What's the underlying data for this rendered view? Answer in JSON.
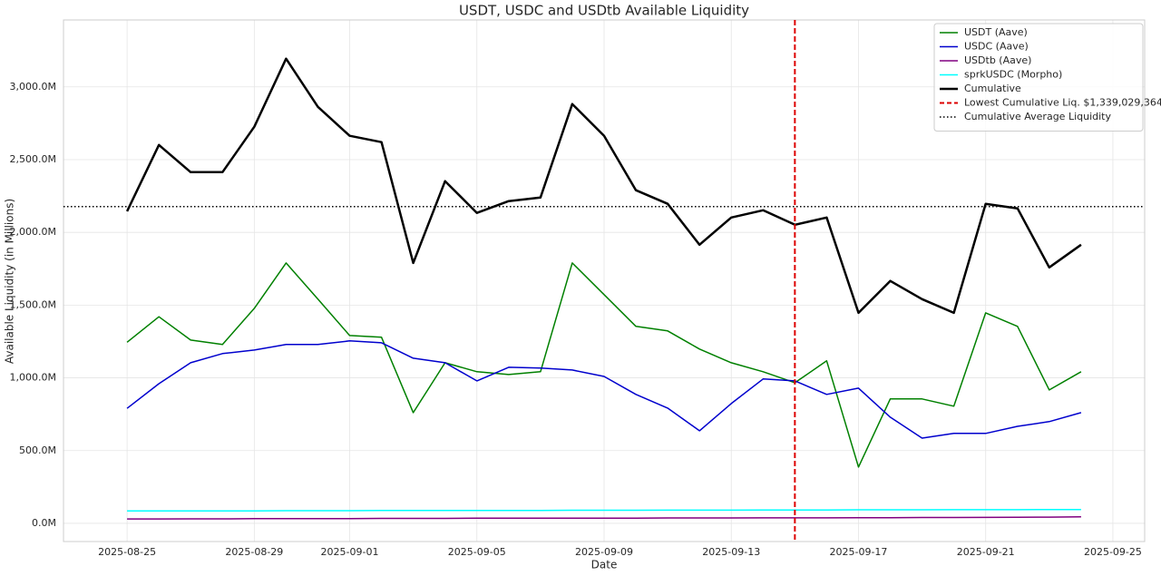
{
  "chart_data": {
    "type": "line",
    "title": "USDT, USDC and USDtb Available Liquidity",
    "x_label": "Date",
    "y_label": "Available Liquidity (in Millions)",
    "x": [
      "2025-08-25",
      "2025-08-26",
      "2025-08-27",
      "2025-08-28",
      "2025-08-29",
      "2025-08-30",
      "2025-08-31",
      "2025-09-01",
      "2025-09-02",
      "2025-09-03",
      "2025-09-04",
      "2025-09-05",
      "2025-09-06",
      "2025-09-07",
      "2025-09-08",
      "2025-09-09",
      "2025-09-10",
      "2025-09-11",
      "2025-09-12",
      "2025-09-13",
      "2025-09-14",
      "2025-09-15",
      "2025-09-16",
      "2025-09-17",
      "2025-09-18",
      "2025-09-19",
      "2025-09-20",
      "2025-09-21",
      "2025-09-22",
      "2025-09-23",
      "2025-09-24"
    ],
    "series": [
      {
        "name": "USDT (Aave)",
        "color": "#008000",
        "width": 1.5,
        "values": [
          1245,
          1420,
          1260,
          1229,
          1478,
          1790,
          1541,
          1291,
          1279,
          761,
          1104,
          1042,
          1023,
          1042,
          1790,
          1572,
          1354,
          1323,
          1198,
          1104,
          1042,
          967,
          1117,
          387,
          855,
          855,
          805,
          1447,
          1354,
          917,
          1042
        ]
      },
      {
        "name": "USDC (Aave)",
        "color": "#0000cd",
        "width": 1.5,
        "values": [
          790,
          960,
          1104,
          1167,
          1191,
          1229,
          1229,
          1254,
          1241,
          1135,
          1104,
          979,
          1073,
          1067,
          1054,
          1010,
          886,
          792,
          636,
          823,
          992,
          979,
          886,
          929,
          730,
          586,
          618,
          618,
          667,
          699,
          761
        ]
      },
      {
        "name": "USDtb (Aave)",
        "color": "#800080",
        "width": 1.5,
        "values": [
          30,
          30,
          31,
          31,
          32,
          32,
          33,
          33,
          34,
          34,
          34,
          35,
          35,
          35,
          36,
          36,
          36,
          37,
          37,
          37,
          38,
          38,
          38,
          39,
          39,
          40,
          40,
          41,
          42,
          43,
          45
        ]
      },
      {
        "name": "sprkUSDC (Morpho)",
        "color": "#00ffff",
        "width": 1.5,
        "values": [
          85,
          85,
          86,
          86,
          86,
          87,
          87,
          87,
          88,
          88,
          88,
          89,
          89,
          89,
          90,
          90,
          90,
          91,
          91,
          91,
          92,
          92,
          92,
          93,
          93,
          93,
          94,
          94,
          94,
          95,
          95
        ]
      },
      {
        "name": "Cumulative",
        "color": "#000000",
        "width": 2.5,
        "values": [
          2145,
          2601,
          2414,
          2414,
          2726,
          3194,
          2863,
          2664,
          2620,
          1790,
          2352,
          2134,
          2215,
          2240,
          2882,
          2664,
          2290,
          2196,
          1915,
          2102,
          2152,
          2052,
          2102,
          1447,
          1666,
          1541,
          1447,
          2196,
          2165,
          1759,
          1915
        ]
      }
    ],
    "min_line": {
      "name": "Lowest Cumulative Liq. $1,339,029,364",
      "x": "2025-09-15",
      "color": "#dd0000"
    },
    "avg_line": {
      "name": "Cumulative Average Liquidity",
      "value": 2177,
      "color": "#000000"
    },
    "xlim": [
      "2025-08-23",
      "2025-09-26"
    ],
    "xticks": [
      "2025-08-25",
      "2025-08-29",
      "2025-09-01",
      "2025-09-05",
      "2025-09-09",
      "2025-09-13",
      "2025-09-17",
      "2025-09-21",
      "2025-09-25"
    ],
    "ylim": [
      -125,
      3460
    ],
    "yticks": [
      {
        "value": 0,
        "label": "0.0M"
      },
      {
        "value": 500,
        "label": "500.0M"
      },
      {
        "value": 1000,
        "label": "1,000.0M"
      },
      {
        "value": 1500,
        "label": "1,500.0M"
      },
      {
        "value": 2000,
        "label": "2,000.0M"
      },
      {
        "value": 2500,
        "label": "2,500.0M"
      },
      {
        "value": 3000,
        "label": "3,000.0M"
      }
    ],
    "grid": true,
    "legend": "upper right"
  }
}
